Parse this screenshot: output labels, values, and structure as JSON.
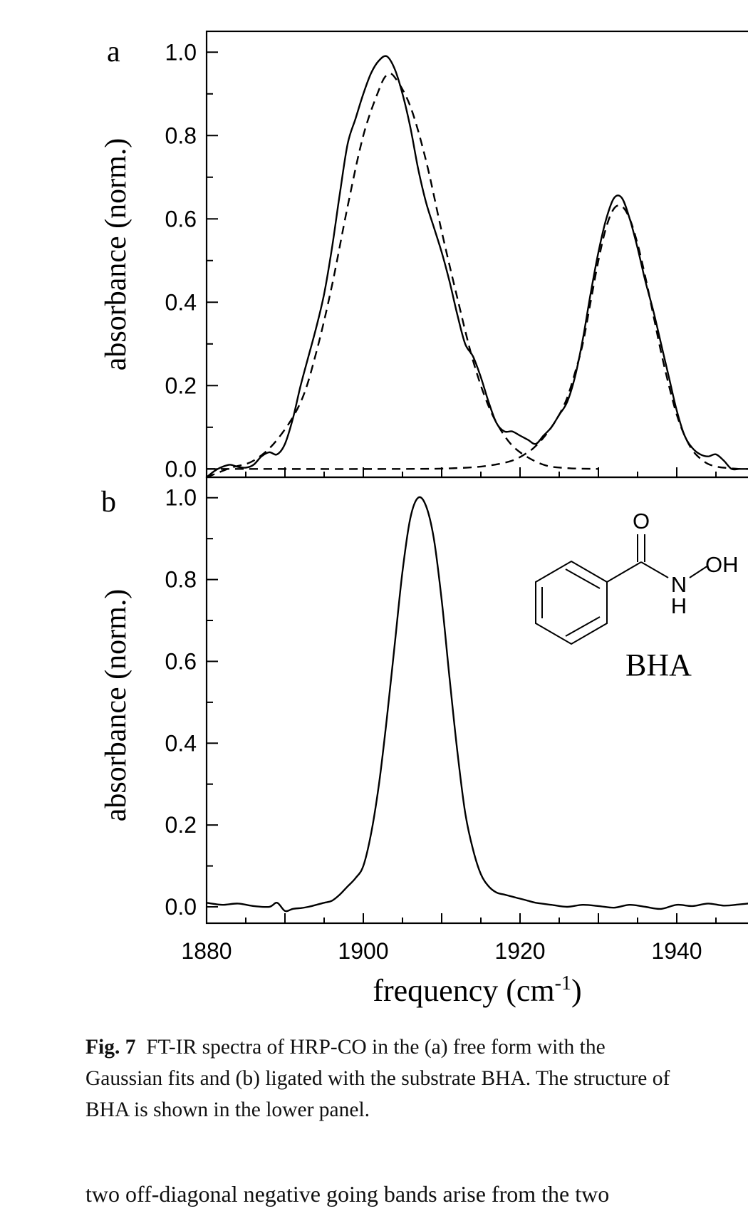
{
  "chart_data": [
    {
      "type": "line",
      "panel_label": "a",
      "ylabel": "absorbance (norm.)",
      "xlim": [
        1880,
        1950
      ],
      "ylim": [
        -0.02,
        1.05
      ],
      "yticks": [
        "0.0",
        "0.2",
        "0.4",
        "0.6",
        "0.8",
        "1.0"
      ],
      "series": [
        {
          "style": "solid",
          "x": [
            1880,
            1881,
            1882,
            1883,
            1884,
            1885,
            1886,
            1887,
            1888,
            1889,
            1890,
            1891,
            1892,
            1893,
            1894,
            1895,
            1896,
            1897,
            1898,
            1899,
            1900,
            1901,
            1902,
            1903,
            1904,
            1905,
            1906,
            1907,
            1908,
            1909,
            1910,
            1911,
            1912,
            1913,
            1914,
            1915,
            1916,
            1917,
            1918,
            1919,
            1920,
            1921,
            1922,
            1923,
            1924,
            1925,
            1926,
            1927,
            1928,
            1929,
            1930,
            1931,
            1932,
            1933,
            1934,
            1935,
            1936,
            1937,
            1938,
            1939,
            1940,
            1941,
            1942,
            1943,
            1944,
            1945,
            1946,
            1947,
            1948,
            1949,
            1950
          ],
          "y": [
            -0.02,
            -0.005,
            0.005,
            0.01,
            0.005,
            0.003,
            0.01,
            0.03,
            0.04,
            0.035,
            0.06,
            0.12,
            0.2,
            0.27,
            0.34,
            0.42,
            0.53,
            0.66,
            0.78,
            0.84,
            0.9,
            0.95,
            0.98,
            0.99,
            0.96,
            0.9,
            0.82,
            0.72,
            0.64,
            0.58,
            0.52,
            0.45,
            0.37,
            0.3,
            0.27,
            0.22,
            0.16,
            0.11,
            0.09,
            0.09,
            0.08,
            0.07,
            0.06,
            0.08,
            0.1,
            0.13,
            0.16,
            0.22,
            0.31,
            0.42,
            0.52,
            0.6,
            0.65,
            0.65,
            0.6,
            0.53,
            0.45,
            0.38,
            0.3,
            0.22,
            0.14,
            0.08,
            0.05,
            0.035,
            0.03,
            0.035,
            0.02,
            0.0,
            0.0,
            0.0,
            0.0
          ]
        },
        {
          "style": "dashed",
          "x": [
            1880,
            1883,
            1886,
            1889,
            1892,
            1894,
            1896,
            1898,
            1900,
            1902,
            1903,
            1904,
            1906,
            1908,
            1910,
            1912,
            1914,
            1916,
            1918,
            1920,
            1923,
            1926,
            1930
          ],
          "y": [
            -0.02,
            0.002,
            0.02,
            0.07,
            0.16,
            0.28,
            0.44,
            0.63,
            0.8,
            0.91,
            0.945,
            0.94,
            0.87,
            0.74,
            0.57,
            0.41,
            0.26,
            0.15,
            0.08,
            0.04,
            0.01,
            0.002,
            0.0
          ]
        },
        {
          "style": "dashed",
          "x": [
            1880,
            1905,
            1912,
            1916,
            1919,
            1921,
            1922,
            1923,
            1924,
            1925,
            1926,
            1927,
            1928,
            1929,
            1930,
            1931,
            1932,
            1933,
            1934,
            1935,
            1936,
            1937,
            1938,
            1939,
            1940,
            1941,
            1942,
            1943,
            1944,
            1945,
            1946,
            1948,
            1950
          ],
          "y": [
            0.0,
            0.0,
            0.002,
            0.008,
            0.02,
            0.04,
            0.055,
            0.075,
            0.1,
            0.13,
            0.17,
            0.23,
            0.3,
            0.4,
            0.5,
            0.58,
            0.625,
            0.63,
            0.6,
            0.54,
            0.46,
            0.37,
            0.28,
            0.2,
            0.13,
            0.08,
            0.045,
            0.025,
            0.012,
            0.006,
            0.003,
            0.0,
            0.0
          ]
        }
      ]
    },
    {
      "type": "line",
      "panel_label": "b",
      "ylabel": "absorbance (norm.)",
      "xlabel": "frequency (cm-1)",
      "xlim": [
        1880,
        1950
      ],
      "ylim": [
        -0.04,
        1.05
      ],
      "xticks": [
        "1880",
        "1900",
        "1920",
        "1940"
      ],
      "yticks": [
        "0.0",
        "0.2",
        "0.4",
        "0.6",
        "0.8",
        "1.0"
      ],
      "series": [
        {
          "style": "solid",
          "x": [
            1880,
            1882,
            1884,
            1886,
            1888,
            1889,
            1890,
            1891,
            1892,
            1893,
            1894,
            1895,
            1896,
            1897,
            1898,
            1899,
            1900,
            1901,
            1902,
            1903,
            1904,
            1905,
            1906,
            1907,
            1908,
            1909,
            1910,
            1911,
            1912,
            1913,
            1914,
            1915,
            1916,
            1917,
            1918,
            1919,
            1920,
            1921,
            1922,
            1924,
            1926,
            1928,
            1930,
            1932,
            1934,
            1936,
            1938,
            1940,
            1942,
            1944,
            1946,
            1948,
            1950
          ],
          "y": [
            0.01,
            0.005,
            0.008,
            0.002,
            0.0,
            0.01,
            -0.01,
            -0.005,
            -0.003,
            0.0,
            0.005,
            0.01,
            0.015,
            0.03,
            0.05,
            0.07,
            0.1,
            0.18,
            0.3,
            0.46,
            0.64,
            0.82,
            0.95,
            1.0,
            0.98,
            0.9,
            0.75,
            0.56,
            0.38,
            0.23,
            0.14,
            0.08,
            0.05,
            0.035,
            0.03,
            0.025,
            0.02,
            0.015,
            0.01,
            0.005,
            0.0,
            0.005,
            0.002,
            -0.002,
            0.005,
            0.0,
            -0.005,
            0.005,
            0.002,
            0.008,
            0.003,
            0.006,
            0.01
          ]
        }
      ]
    }
  ],
  "caption": {
    "label": "Fig. 7",
    "lines": [
      "FT-IR spectra of HRP-CO in the (a) free form with the",
      "Gaussian fits and (b) ligated with the substrate BHA. The structure of",
      "BHA is shown in the lower panel."
    ]
  },
  "molecule": {
    "name": "BHA",
    "atoms": {
      "O": "O",
      "N": "N",
      "H": "H",
      "OH": "OH"
    }
  },
  "body_text": "two off-diagonal negative going bands arise from the two"
}
